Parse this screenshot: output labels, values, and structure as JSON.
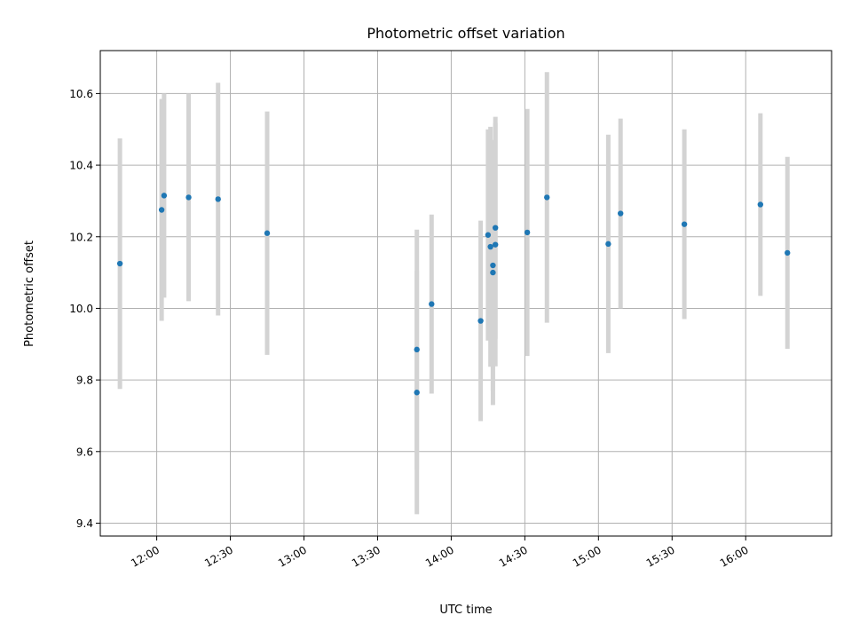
{
  "chart_data": {
    "type": "scatter",
    "title": "Photometric offset variation",
    "xlabel": "UTC time",
    "ylabel": "Photometric offset",
    "x_tick_labels": [
      "12:00",
      "12:30",
      "13:00",
      "13:30",
      "14:00",
      "14:30",
      "15:00",
      "15:30",
      "16:00"
    ],
    "y_tick_labels": [
      "9.4",
      "9.6",
      "9.8",
      "10.0",
      "10.2",
      "10.4",
      "10.6"
    ],
    "xlim": [
      "11:37",
      "16:35"
    ],
    "ylim": [
      9.364,
      10.72
    ],
    "grid": true,
    "colors": {
      "points": "#1f77b4",
      "errorbars": "#d3d3d3",
      "grid": "#b0b0b0"
    },
    "points": [
      {
        "x": "11:45",
        "y": 10.125,
        "err": 0.35
      },
      {
        "x": "12:02",
        "y": 10.275,
        "err": 0.31
      },
      {
        "x": "12:03",
        "y": 10.315,
        "err": 0.285
      },
      {
        "x": "12:13",
        "y": 10.31,
        "err": 0.29
      },
      {
        "x": "12:25",
        "y": 10.305,
        "err": 0.325
      },
      {
        "x": "12:45",
        "y": 10.21,
        "err": 0.34
      },
      {
        "x": "13:46",
        "y": 9.765,
        "err": 0.34
      },
      {
        "x": "13:46",
        "y": 9.885,
        "err": 0.335
      },
      {
        "x": "13:52",
        "y": 10.012,
        "err": 0.25
      },
      {
        "x": "14:12",
        "y": 9.965,
        "err": 0.28
      },
      {
        "x": "14:15",
        "y": 10.205,
        "err": 0.295
      },
      {
        "x": "14:16",
        "y": 10.172,
        "err": 0.335
      },
      {
        "x": "14:17",
        "y": 10.12,
        "err": 0.35
      },
      {
        "x": "14:17",
        "y": 10.1,
        "err": 0.37
      },
      {
        "x": "14:18",
        "y": 10.178,
        "err": 0.34
      },
      {
        "x": "14:18",
        "y": 10.225,
        "err": 0.31
      },
      {
        "x": "14:31",
        "y": 10.212,
        "err": 0.345
      },
      {
        "x": "14:39",
        "y": 10.31,
        "err": 0.35
      },
      {
        "x": "15:04",
        "y": 10.18,
        "err": 0.305
      },
      {
        "x": "15:09",
        "y": 10.265,
        "err": 0.265
      },
      {
        "x": "15:35",
        "y": 10.235,
        "err": 0.265
      },
      {
        "x": "16:06",
        "y": 10.29,
        "err": 0.255
      },
      {
        "x": "16:17",
        "y": 10.155,
        "err": 0.268
      }
    ]
  }
}
